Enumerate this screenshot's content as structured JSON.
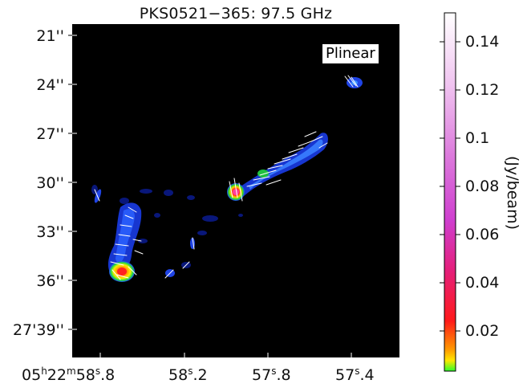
{
  "title": "PKS0521−365: 97.5 GHz",
  "legend_label": "Plinear",
  "y_ticks": [
    "21''",
    "24''",
    "27''",
    "30''",
    "33''",
    "36''",
    "27'39''"
  ],
  "x_ticks": [
    {
      "main": "05",
      "sup1": "h",
      "mid": "22",
      "sup2": "m",
      "tail": "58",
      "sup3": "s",
      "end": ".8"
    },
    {
      "main": "58",
      "sup1": "s",
      "end": ".2"
    },
    {
      "main": "57",
      "sup1": "s",
      "end": ".8"
    },
    {
      "main": "57",
      "sup1": "s",
      "end": ".4"
    }
  ],
  "colorbar": {
    "ticks": [
      "0.14",
      "0.12",
      "0.1",
      "0.08",
      "0.06",
      "0.04",
      "0.02"
    ],
    "unit": "(Jy/beam)",
    "colors": [
      "#ffffff",
      "#f2c8f2",
      "#e08ae0",
      "#d040d0",
      "#e0208a",
      "#ff1f1f",
      "#ff8a00",
      "#ffe600",
      "#3cff3c"
    ]
  }
}
